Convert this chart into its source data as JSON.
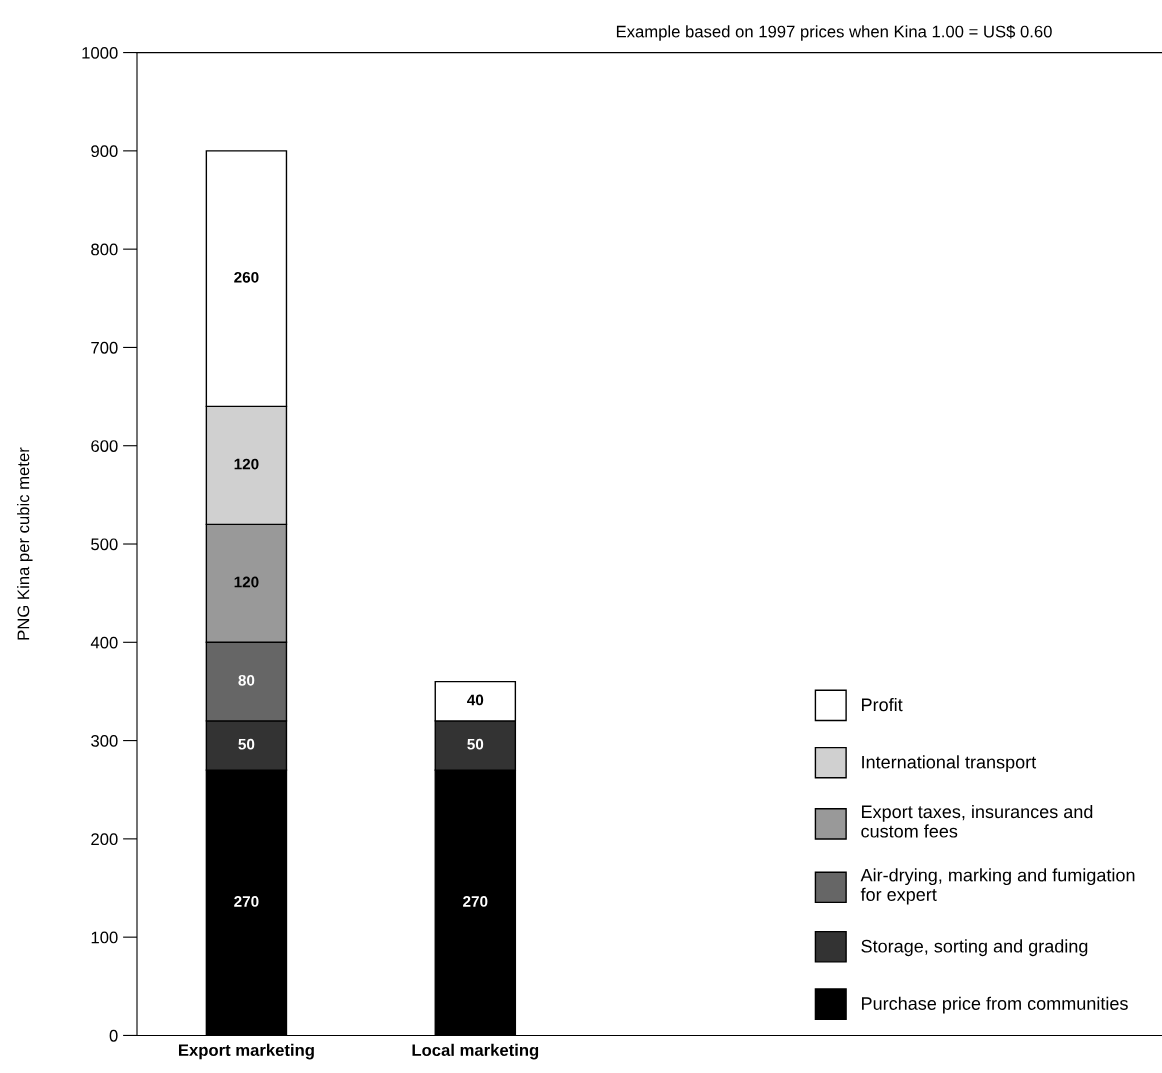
{
  "chart_data": {
    "type": "bar",
    "stacked": true,
    "ylabel": "PNG Kina per cubic meter",
    "categories": [
      "Export marketing",
      "Local marketing"
    ],
    "series": [
      {
        "name": "Purchase price from communities",
        "color": "#000000",
        "values": [
          270,
          270
        ]
      },
      {
        "name": "Storage, sorting and grading",
        "color": "#333333",
        "values": [
          50,
          50
        ]
      },
      {
        "name": "Air-drying, marking and fumigation\nfor expert",
        "color": "#666666",
        "values": [
          80,
          null
        ]
      },
      {
        "name": "Export taxes, insurances and\ncustom fees",
        "color": "#999999",
        "values": [
          120,
          null
        ]
      },
      {
        "name": "International transport",
        "color": "#d0d0d0",
        "values": [
          120,
          null
        ]
      },
      {
        "name": "Profit",
        "color": "#ffffff",
        "values": [
          260,
          40
        ]
      }
    ],
    "ylim": [
      0,
      1000
    ],
    "yticks": [
      0,
      100,
      200,
      300,
      400,
      500,
      600,
      700,
      800,
      900,
      1000
    ],
    "data_labels": true,
    "grid": false,
    "legend": "bottom right",
    "annotations": [
      "Example based on 1997 prices when Kina 1.00 = US$ 0.60"
    ]
  }
}
